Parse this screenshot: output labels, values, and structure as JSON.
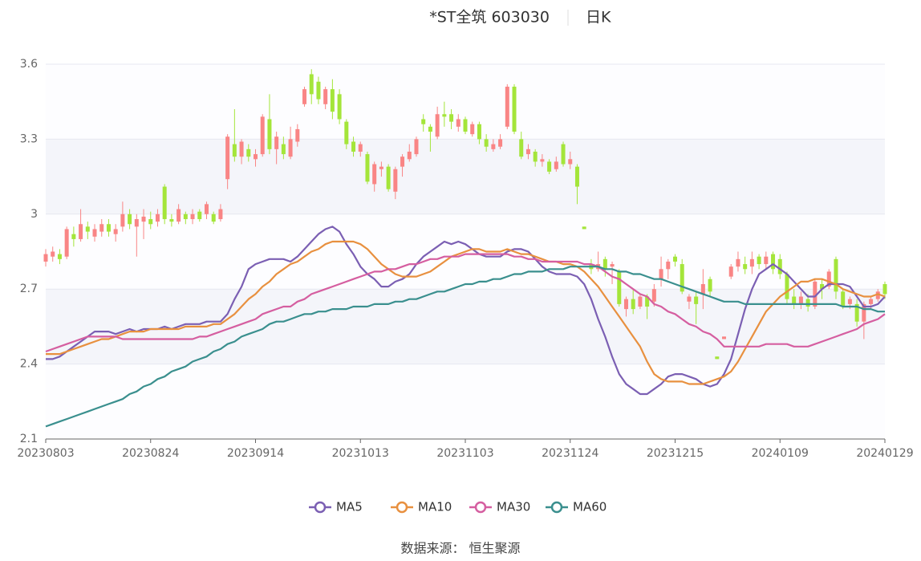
{
  "chart_data": {
    "type": "candlestick",
    "title": "*ST全筑 603030",
    "subtitle": "日K",
    "source": "数据来源： 恒生聚源",
    "categories": [
      "20230803",
      null,
      null,
      null,
      null,
      null,
      null,
      null,
      null,
      null,
      null,
      null,
      null,
      null,
      null,
      "20230824",
      null,
      null,
      null,
      null,
      null,
      null,
      null,
      null,
      null,
      null,
      null,
      null,
      null,
      null,
      "20230914",
      null,
      null,
      null,
      null,
      null,
      null,
      null,
      null,
      null,
      null,
      null,
      null,
      null,
      null,
      "20231013",
      null,
      null,
      null,
      null,
      null,
      null,
      null,
      null,
      null,
      null,
      null,
      null,
      null,
      null,
      "20231103",
      null,
      null,
      null,
      null,
      null,
      null,
      null,
      null,
      null,
      null,
      null,
      null,
      null,
      null,
      "20231124",
      null,
      null,
      null,
      null,
      null,
      null,
      null,
      null,
      null,
      null,
      null,
      null,
      null,
      null,
      "20231215",
      null,
      null,
      null,
      null,
      null,
      null,
      null,
      null,
      null,
      null,
      null,
      null,
      null,
      null,
      "20240109",
      null,
      null,
      null,
      null,
      null,
      null,
      null,
      null,
      null,
      null,
      null,
      null,
      null,
      null,
      "20240129"
    ],
    "open": [
      2.81,
      2.83,
      2.84,
      2.83,
      2.92,
      2.9,
      2.95,
      2.91,
      2.93,
      2.96,
      2.92,
      2.95,
      3.0,
      2.95,
      2.97,
      2.98,
      2.97,
      3.11,
      2.98,
      2.97,
      3.0,
      2.98,
      3.01,
      3.0,
      3.0,
      2.98,
      3.14,
      3.28,
      3.23,
      3.26,
      3.22,
      3.24,
      3.38,
      3.26,
      3.28,
      3.23,
      3.29,
      3.44,
      3.56,
      3.53,
      3.44,
      3.5,
      3.48,
      3.37,
      3.29,
      3.25,
      3.24,
      3.12,
      3.18,
      3.19,
      3.09,
      3.19,
      3.22,
      3.24,
      3.38,
      3.35,
      3.31,
      3.4,
      3.4,
      3.35,
      3.38,
      3.32,
      3.36,
      3.3,
      3.26,
      3.27,
      3.35,
      3.51,
      3.3,
      3.24,
      3.25,
      3.21,
      3.21,
      3.18,
      3.28,
      3.2,
      3.19,
      2.95,
      2.8,
      2.78,
      2.82,
      2.79,
      2.77,
      2.62,
      2.66,
      2.63,
      2.67,
      2.65,
      2.74,
      2.78,
      2.83,
      2.8,
      2.65,
      2.67,
      2.68,
      2.74,
      2.43,
      2.5,
      2.75,
      2.79,
      2.8,
      2.79,
      2.83,
      2.8,
      2.84,
      2.82,
      2.76,
      2.67,
      2.64,
      2.66,
      2.63,
      2.72,
      2.71,
      2.82,
      2.69,
      2.64,
      2.64,
      2.57,
      2.64,
      2.66,
      2.72
    ],
    "close": [
      2.84,
      2.85,
      2.82,
      2.94,
      2.9,
      2.96,
      2.93,
      2.94,
      2.96,
      2.93,
      2.94,
      3.0,
      2.96,
      2.98,
      2.99,
      2.96,
      3.0,
      2.98,
      2.97,
      3.02,
      2.98,
      3.0,
      2.98,
      3.04,
      2.97,
      3.02,
      3.31,
      3.23,
      3.29,
      3.23,
      3.24,
      3.39,
      3.26,
      3.31,
      3.24,
      3.3,
      3.34,
      3.5,
      3.48,
      3.46,
      3.5,
      3.41,
      3.38,
      3.28,
      3.25,
      3.28,
      3.13,
      3.2,
      3.19,
      3.1,
      3.18,
      3.23,
      3.25,
      3.3,
      3.36,
      3.33,
      3.4,
      3.39,
      3.37,
      3.38,
      3.33,
      3.36,
      3.3,
      3.27,
      3.28,
      3.3,
      3.51,
      3.33,
      3.23,
      3.26,
      3.21,
      3.22,
      3.17,
      3.21,
      3.2,
      3.22,
      3.11,
      2.94,
      2.78,
      2.8,
      2.78,
      2.8,
      2.64,
      2.66,
      2.62,
      2.67,
      2.63,
      2.7,
      2.78,
      2.81,
      2.81,
      2.69,
      2.67,
      2.64,
      2.72,
      2.69,
      2.42,
      2.51,
      2.79,
      2.82,
      2.78,
      2.82,
      2.8,
      2.83,
      2.78,
      2.76,
      2.66,
      2.64,
      2.67,
      2.63,
      2.73,
      2.7,
      2.77,
      2.69,
      2.63,
      2.66,
      2.57,
      2.64,
      2.66,
      2.69,
      2.68
    ],
    "low": [
      2.79,
      2.81,
      2.8,
      2.82,
      2.87,
      2.89,
      2.9,
      2.89,
      2.91,
      2.91,
      2.89,
      2.93,
      2.94,
      2.83,
      2.9,
      2.94,
      2.95,
      2.96,
      2.95,
      2.96,
      2.96,
      2.96,
      2.97,
      2.98,
      2.96,
      2.97,
      3.1,
      3.21,
      3.2,
      3.21,
      3.19,
      3.23,
      3.24,
      3.2,
      3.22,
      3.22,
      3.27,
      3.43,
      3.44,
      3.44,
      3.42,
      3.38,
      3.36,
      3.26,
      3.23,
      3.23,
      3.12,
      3.09,
      3.15,
      3.09,
      3.06,
      3.15,
      3.21,
      3.23,
      3.33,
      3.25,
      3.3,
      3.35,
      3.34,
      3.33,
      3.32,
      3.31,
      3.28,
      3.25,
      3.25,
      3.26,
      3.34,
      3.32,
      3.22,
      3.22,
      3.19,
      3.19,
      3.16,
      3.17,
      3.19,
      3.18,
      3.04,
      2.94,
      2.76,
      2.77,
      2.75,
      2.72,
      2.63,
      2.59,
      2.6,
      2.62,
      2.58,
      2.63,
      2.71,
      2.74,
      2.79,
      2.68,
      2.62,
      2.56,
      2.62,
      2.67,
      2.42,
      2.5,
      2.74,
      2.77,
      2.76,
      2.76,
      2.78,
      2.78,
      2.76,
      2.74,
      2.64,
      2.62,
      2.62,
      2.61,
      2.62,
      2.66,
      2.7,
      2.66,
      2.62,
      2.62,
      2.55,
      2.5,
      2.62,
      2.65,
      2.66
    ],
    "high": [
      2.86,
      2.87,
      2.86,
      2.95,
      2.95,
      3.02,
      2.97,
      2.96,
      2.98,
      2.98,
      2.96,
      3.05,
      3.02,
      3.0,
      3.02,
      3.01,
      3.02,
      3.12,
      3.0,
      3.04,
      3.01,
      3.02,
      3.02,
      3.05,
      3.01,
      3.04,
      3.32,
      3.42,
      3.3,
      3.28,
      3.26,
      3.4,
      3.48,
      3.33,
      3.31,
      3.35,
      3.36,
      3.51,
      3.58,
      3.55,
      3.51,
      3.54,
      3.5,
      3.38,
      3.31,
      3.29,
      3.25,
      3.21,
      3.21,
      3.2,
      3.19,
      3.24,
      3.28,
      3.31,
      3.4,
      3.36,
      3.43,
      3.45,
      3.42,
      3.4,
      3.39,
      3.37,
      3.37,
      3.32,
      3.3,
      3.32,
      3.52,
      3.52,
      3.33,
      3.28,
      3.26,
      3.24,
      3.22,
      3.23,
      3.29,
      3.25,
      3.2,
      2.95,
      2.82,
      2.85,
      2.83,
      2.81,
      2.78,
      2.67,
      2.7,
      2.68,
      2.68,
      2.72,
      2.83,
      2.82,
      2.84,
      2.82,
      2.68,
      2.69,
      2.78,
      2.75,
      2.43,
      2.51,
      2.8,
      2.85,
      2.83,
      2.85,
      2.84,
      2.85,
      2.85,
      2.84,
      2.77,
      2.7,
      2.69,
      2.68,
      2.74,
      2.74,
      2.78,
      2.83,
      2.7,
      2.67,
      2.66,
      2.65,
      2.67,
      2.7,
      2.73
    ],
    "up_color": "#f98585",
    "down_color": "#a4e53a",
    "series": [
      {
        "name": "MA5",
        "color": "#7b5fb3",
        "values": [
          2.42,
          2.42,
          2.43,
          2.45,
          2.47,
          2.49,
          2.51,
          2.53,
          2.53,
          2.53,
          2.52,
          2.53,
          2.54,
          2.53,
          2.54,
          2.54,
          2.54,
          2.55,
          2.54,
          2.55,
          2.56,
          2.56,
          2.56,
          2.57,
          2.57,
          2.57,
          2.6,
          2.66,
          2.71,
          2.78,
          2.8,
          2.81,
          2.82,
          2.82,
          2.82,
          2.81,
          2.83,
          2.86,
          2.89,
          2.92,
          2.94,
          2.95,
          2.93,
          2.88,
          2.84,
          2.79,
          2.76,
          2.74,
          2.71,
          2.71,
          2.73,
          2.74,
          2.76,
          2.8,
          2.83,
          2.85,
          2.87,
          2.89,
          2.88,
          2.89,
          2.88,
          2.86,
          2.84,
          2.83,
          2.83,
          2.83,
          2.85,
          2.86,
          2.86,
          2.85,
          2.82,
          2.79,
          2.77,
          2.76,
          2.76,
          2.76,
          2.75,
          2.72,
          2.66,
          2.58,
          2.51,
          2.43,
          2.36,
          2.32,
          2.3,
          2.28,
          2.28,
          2.3,
          2.32,
          2.35,
          2.36,
          2.36,
          2.35,
          2.34,
          2.32,
          2.31,
          2.32,
          2.36,
          2.42,
          2.52,
          2.62,
          2.7,
          2.76,
          2.78,
          2.8,
          2.78,
          2.76,
          2.73,
          2.7,
          2.67,
          2.67,
          2.7,
          2.72,
          2.72,
          2.72,
          2.71,
          2.67,
          2.63,
          2.63,
          2.64,
          2.67
        ]
      },
      {
        "name": "MA10",
        "color": "#e8903f",
        "values": [
          2.44,
          2.44,
          2.44,
          2.45,
          2.46,
          2.47,
          2.48,
          2.49,
          2.5,
          2.5,
          2.51,
          2.52,
          2.53,
          2.53,
          2.53,
          2.54,
          2.54,
          2.54,
          2.54,
          2.54,
          2.55,
          2.55,
          2.55,
          2.55,
          2.56,
          2.56,
          2.58,
          2.6,
          2.63,
          2.66,
          2.68,
          2.71,
          2.73,
          2.76,
          2.78,
          2.8,
          2.81,
          2.83,
          2.85,
          2.86,
          2.88,
          2.89,
          2.89,
          2.89,
          2.89,
          2.88,
          2.86,
          2.83,
          2.8,
          2.78,
          2.76,
          2.75,
          2.75,
          2.75,
          2.76,
          2.77,
          2.79,
          2.81,
          2.83,
          2.84,
          2.85,
          2.86,
          2.86,
          2.85,
          2.85,
          2.85,
          2.86,
          2.85,
          2.84,
          2.84,
          2.83,
          2.82,
          2.81,
          2.81,
          2.8,
          2.8,
          2.79,
          2.77,
          2.74,
          2.71,
          2.67,
          2.63,
          2.59,
          2.55,
          2.51,
          2.47,
          2.41,
          2.36,
          2.34,
          2.33,
          2.33,
          2.33,
          2.32,
          2.32,
          2.32,
          2.33,
          2.34,
          2.35,
          2.37,
          2.41,
          2.46,
          2.51,
          2.56,
          2.61,
          2.64,
          2.67,
          2.69,
          2.71,
          2.73,
          2.73,
          2.74,
          2.74,
          2.73,
          2.72,
          2.7,
          2.69,
          2.68,
          2.67,
          2.67,
          2.68,
          2.67
        ]
      },
      {
        "name": "MA30",
        "color": "#d55ea0",
        "values": [
          2.45,
          2.46,
          2.47,
          2.48,
          2.49,
          2.5,
          2.51,
          2.51,
          2.51,
          2.51,
          2.51,
          2.5,
          2.5,
          2.5,
          2.5,
          2.5,
          2.5,
          2.5,
          2.5,
          2.5,
          2.5,
          2.5,
          2.51,
          2.51,
          2.52,
          2.53,
          2.54,
          2.55,
          2.56,
          2.57,
          2.58,
          2.6,
          2.61,
          2.62,
          2.63,
          2.63,
          2.65,
          2.66,
          2.68,
          2.69,
          2.7,
          2.71,
          2.72,
          2.73,
          2.74,
          2.75,
          2.76,
          2.77,
          2.77,
          2.78,
          2.78,
          2.79,
          2.8,
          2.8,
          2.81,
          2.82,
          2.82,
          2.83,
          2.83,
          2.83,
          2.84,
          2.84,
          2.84,
          2.84,
          2.84,
          2.84,
          2.84,
          2.83,
          2.83,
          2.82,
          2.82,
          2.81,
          2.81,
          2.81,
          2.81,
          2.81,
          2.81,
          2.8,
          2.8,
          2.79,
          2.77,
          2.75,
          2.74,
          2.72,
          2.7,
          2.68,
          2.67,
          2.64,
          2.63,
          2.61,
          2.6,
          2.58,
          2.56,
          2.55,
          2.53,
          2.52,
          2.5,
          2.47,
          2.47,
          2.47,
          2.47,
          2.47,
          2.47,
          2.48,
          2.48,
          2.48,
          2.48,
          2.47,
          2.47,
          2.47,
          2.48,
          2.49,
          2.5,
          2.51,
          2.52,
          2.53,
          2.54,
          2.56,
          2.57,
          2.58,
          2.6
        ]
      },
      {
        "name": "MA60",
        "color": "#3a8f8e",
        "values": [
          2.15,
          2.16,
          2.17,
          2.18,
          2.19,
          2.2,
          2.21,
          2.22,
          2.23,
          2.24,
          2.25,
          2.26,
          2.28,
          2.29,
          2.31,
          2.32,
          2.34,
          2.35,
          2.37,
          2.38,
          2.39,
          2.41,
          2.42,
          2.43,
          2.45,
          2.46,
          2.48,
          2.49,
          2.51,
          2.52,
          2.53,
          2.54,
          2.56,
          2.57,
          2.57,
          2.58,
          2.59,
          2.6,
          2.6,
          2.61,
          2.61,
          2.62,
          2.62,
          2.62,
          2.63,
          2.63,
          2.63,
          2.64,
          2.64,
          2.64,
          2.65,
          2.65,
          2.66,
          2.66,
          2.67,
          2.68,
          2.69,
          2.69,
          2.7,
          2.71,
          2.72,
          2.72,
          2.73,
          2.73,
          2.74,
          2.74,
          2.75,
          2.76,
          2.76,
          2.77,
          2.77,
          2.77,
          2.78,
          2.78,
          2.78,
          2.79,
          2.79,
          2.79,
          2.79,
          2.79,
          2.78,
          2.78,
          2.77,
          2.77,
          2.76,
          2.76,
          2.75,
          2.74,
          2.74,
          2.73,
          2.72,
          2.71,
          2.7,
          2.69,
          2.68,
          2.67,
          2.66,
          2.65,
          2.65,
          2.65,
          2.64,
          2.64,
          2.64,
          2.64,
          2.64,
          2.64,
          2.64,
          2.64,
          2.64,
          2.64,
          2.64,
          2.64,
          2.64,
          2.64,
          2.63,
          2.63,
          2.63,
          2.62,
          2.62,
          2.61,
          2.61
        ]
      }
    ],
    "ylim": [
      2.1,
      3.6
    ],
    "yticks": [
      2.1,
      2.4,
      2.7,
      3,
      3.3,
      3.6
    ]
  }
}
